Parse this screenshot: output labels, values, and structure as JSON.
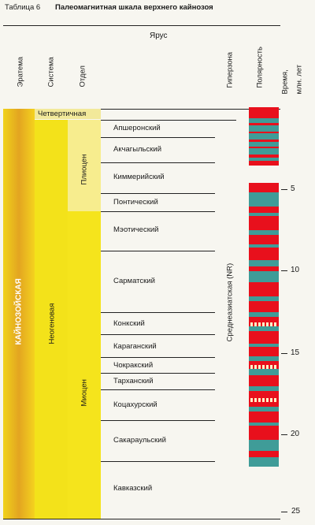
{
  "header": {
    "table_label": "Таблица 6",
    "title": "Палеомагнитная шкала верхнего кайнозоя"
  },
  "columns": {
    "erathem": "Эратема",
    "system": "Система",
    "series": "Отдел",
    "stage": "Ярус",
    "hyperzone": "Гиперзона",
    "polarity": "Полярность",
    "time": "Время,",
    "time_unit": "млн. лет"
  },
  "units": {
    "era": "КАЙНОЗОЙСКАЯ",
    "quaternary": "Четвертичная",
    "neogene": "Неогеновая",
    "pliocene": "Плиоцен",
    "miocene": "Миоцен",
    "hyperzone": "Среднеазиатская (NR)"
  },
  "stages": [
    "Апшеронский",
    "Акчагыльский",
    "Киммерийский",
    "Понтический",
    "Мэотический",
    "Сарматский",
    "Конкский",
    "Караганский",
    "Чокракский",
    "Тарханский",
    "Коцахурский",
    "Сакараульский",
    "Кавказский"
  ],
  "time_ticks": [
    "5",
    "10",
    "15",
    "20",
    "25"
  ],
  "colors": {
    "normal": "#e8101c",
    "reversed": "#3f9c98",
    "era": "#e8b424",
    "neogene": "#f3e21a",
    "pliocene": "#f7ed8e"
  }
}
